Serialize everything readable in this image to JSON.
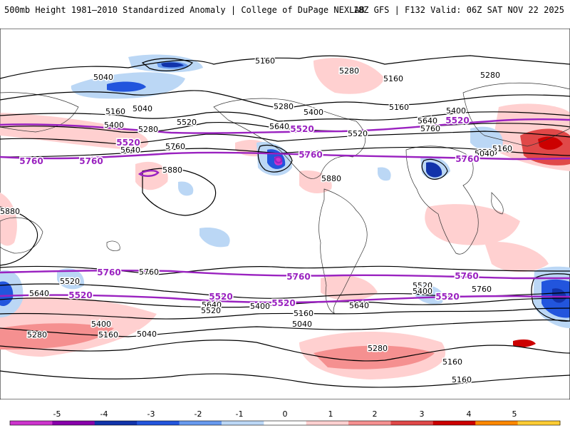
{
  "header": {
    "left_title": "500mb Height 1981–2010 Standardized Anomaly | College of DuPage NEXLAB",
    "right_title": "18Z GFS | F132 Valid: 06Z SAT NOV 22 2025"
  },
  "contour_labels": {
    "black": [
      "5160",
      "5040",
      "5280",
      "5160",
      "5280",
      "5160",
      "5280",
      "5400",
      "5520",
      "5640",
      "5760",
      "5880",
      "5160",
      "5040",
      "5400",
      "5520",
      "5640",
      "5760",
      "5880",
      "5640",
      "5520",
      "5400",
      "5280",
      "5160",
      "5040",
      "5040",
      "5880",
      "5640",
      "5520",
      "5400",
      "5280",
      "5160",
      "5040",
      "5760",
      "5640",
      "5520",
      "5400",
      "5160",
      "5040",
      "5280",
      "5160",
      "5640",
      "5760",
      "5520",
      "5400",
      "5160"
    ],
    "purple": [
      "5520",
      "5760",
      "5520",
      "5760",
      "5760",
      "5520",
      "5760",
      "5520",
      "5760",
      "5520",
      "5760",
      "5520",
      "5760",
      "5520"
    ]
  },
  "colorbar": {
    "ticks": [
      "-5",
      "-4",
      "-3",
      "-2",
      "-1",
      "0",
      "1",
      "2",
      "3",
      "4",
      "5"
    ],
    "colors": [
      "#cc33cc",
      "#8800aa",
      "#1133aa",
      "#2255dd",
      "#6699ee",
      "#bbd7f5",
      "#ffffff",
      "#ffd0d0",
      "#f59090",
      "#e04848",
      "#cc0000",
      "#ff8800",
      "#ffcc33"
    ]
  }
}
